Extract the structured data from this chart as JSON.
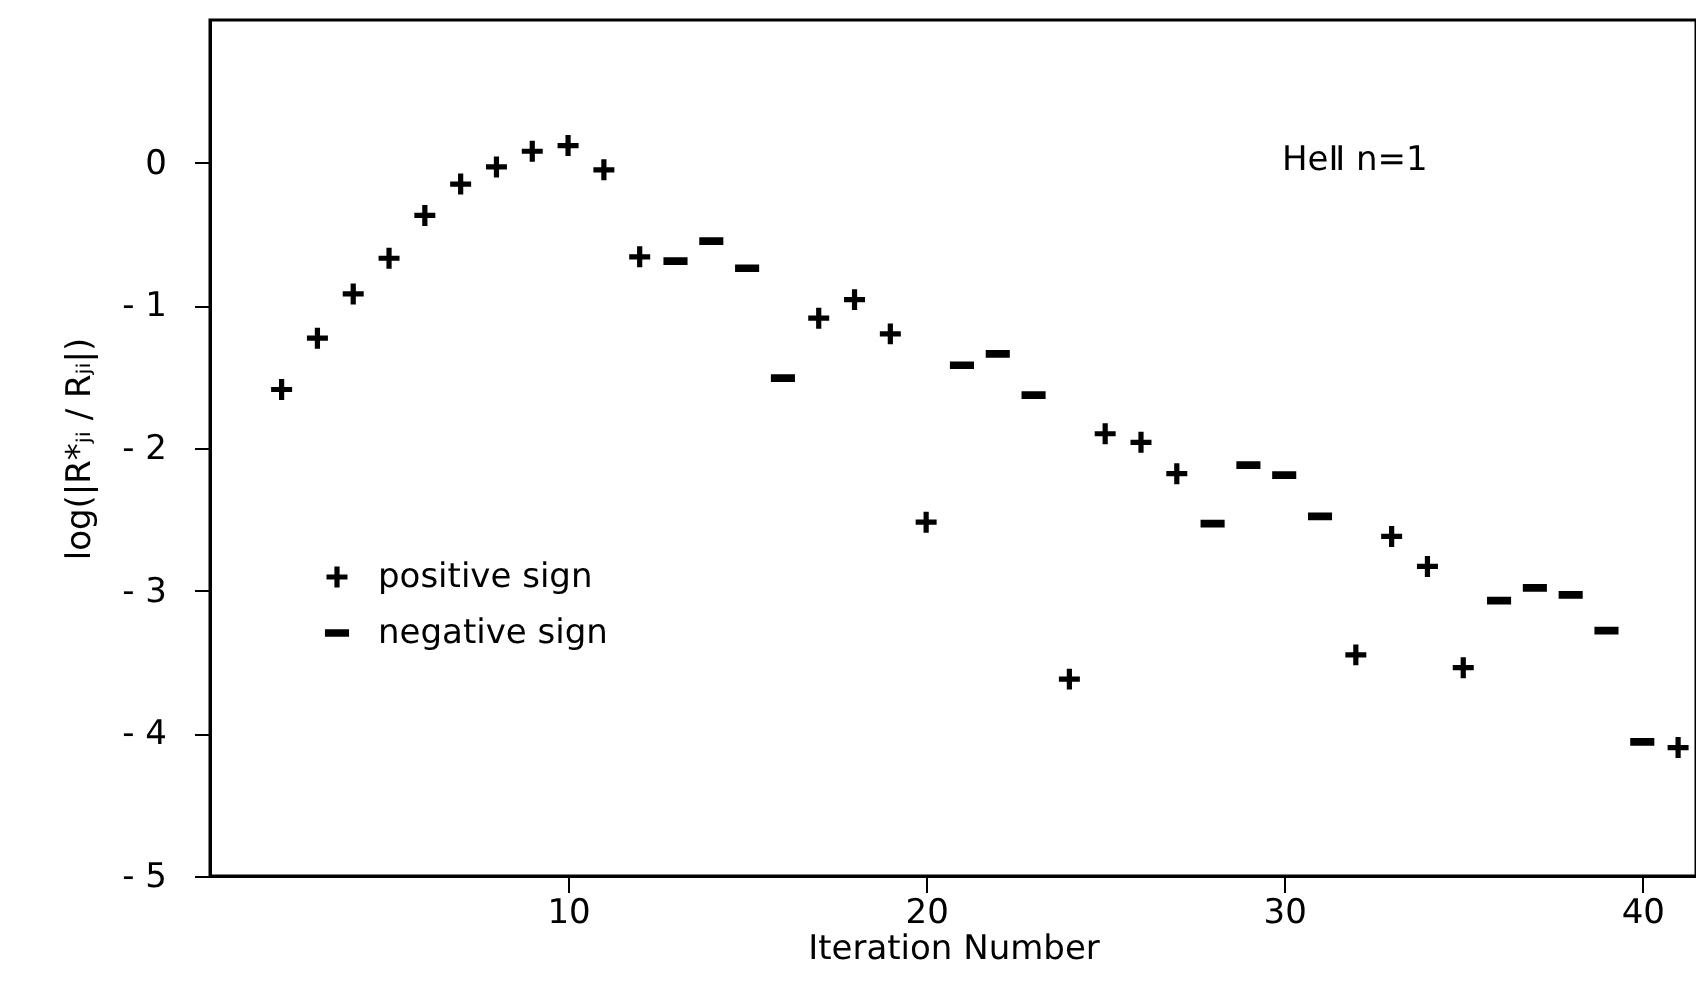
{
  "chart_data": {
    "type": "scatter",
    "xlabel": "Iteration Number",
    "ylabel": "log(|R*ⱼᵢ / Rⱼᵢ|)",
    "annotations": [
      "HeⅡ n=1"
    ],
    "xlim": [
      0,
      41.5
    ],
    "xticks": [
      10,
      20,
      30,
      40
    ],
    "ylim": [
      -5,
      1
    ],
    "yticks": [
      0,
      {
        "value": -1,
        "label": "- 1"
      },
      {
        "value": -2,
        "label": "- 2"
      },
      {
        "value": -3,
        "label": "- 3"
      },
      {
        "value": -4,
        "label": "- 4"
      },
      {
        "value": -5,
        "label": "- 5"
      }
    ],
    "grid": false,
    "legend": "bottom left",
    "series": [
      {
        "name": "positive sign",
        "color": "#000000",
        "marker": "cross",
        "x": [
          2,
          3,
          4,
          5,
          6,
          7,
          8,
          9,
          10,
          11,
          12,
          17,
          18,
          19,
          20,
          24,
          25,
          26,
          27,
          32,
          33,
          34,
          35,
          41
        ],
        "values": [
          -1.59,
          -1.23,
          -0.92,
          -0.67,
          -0.37,
          -0.15,
          -0.03,
          0.08,
          0.12,
          -0.05,
          -0.66,
          -1.09,
          -0.96,
          -1.2,
          -2.52,
          -3.62,
          -1.9,
          -1.96,
          -2.18,
          -3.45,
          -2.62,
          -2.83,
          -3.54,
          -4.1
        ]
      },
      {
        "name": "negative sign",
        "color": "#000000",
        "x": [
          13,
          14,
          15,
          16,
          21,
          22,
          23,
          28,
          29,
          30,
          31,
          36,
          37,
          38,
          39,
          40
        ],
        "values": [
          -0.69,
          -0.55,
          -0.74,
          -1.51,
          -1.42,
          -1.34,
          -1.63,
          -2.53,
          -2.12,
          -2.19,
          -2.48,
          -3.07,
          -2.98,
          -3.03,
          -3.28,
          -4.06
        ]
      }
    ]
  }
}
